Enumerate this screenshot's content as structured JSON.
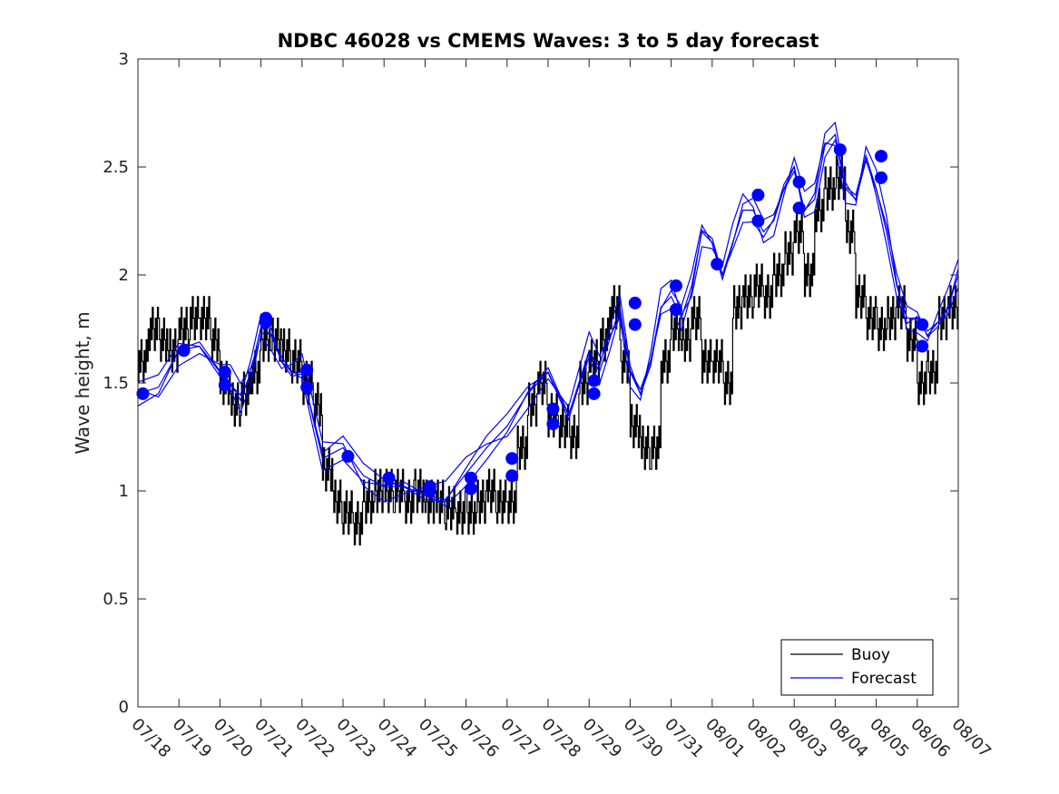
{
  "chart_data": {
    "type": "line",
    "title": "NDBC 46028 vs CMEMS Waves: 3 to 5 day forecast",
    "xlabel": "",
    "ylabel": "Wave height, m",
    "xlim": [
      0,
      20
    ],
    "ylim": [
      0,
      3
    ],
    "x_tick_labels": [
      "07/18",
      "07/19",
      "07/20",
      "07/21",
      "07/22",
      "07/23",
      "07/24",
      "07/25",
      "07/26",
      "07/27",
      "07/28",
      "07/29",
      "07/30",
      "07/31",
      "08/01",
      "08/02",
      "08/03",
      "08/04",
      "08/05",
      "08/06",
      "08/07"
    ],
    "y_ticks": [
      0,
      0.5,
      1,
      1.5,
      2,
      2.5,
      3
    ],
    "grid": false,
    "legend": {
      "position": "bottom-right",
      "entries": [
        "Buoy",
        "Forecast"
      ]
    },
    "colors": {
      "buoy": "#000000",
      "forecast": "#0000ff"
    },
    "series": [
      {
        "name": "Buoy",
        "x": [
          0,
          0.25,
          0.5,
          0.75,
          1,
          1.25,
          1.5,
          1.75,
          2,
          2.25,
          2.5,
          2.75,
          3,
          3.25,
          3.5,
          3.75,
          4,
          4.25,
          4.5,
          4.75,
          5,
          5.25,
          5.5,
          5.75,
          6,
          6.25,
          6.5,
          6.75,
          7,
          7.25,
          7.5,
          7.75,
          8,
          8.25,
          8.5,
          8.75,
          9,
          9.25,
          9.5,
          9.75,
          10,
          10.25,
          10.5,
          10.75,
          11,
          11.25,
          11.5,
          11.75,
          12,
          12.25,
          12.5,
          12.75,
          13,
          13.25,
          13.5,
          13.75,
          14,
          14.25,
          14.5,
          14.75,
          15,
          15.25,
          15.5,
          15.75,
          16,
          16.25,
          16.5,
          16.75,
          17,
          17.25,
          17.5,
          17.75,
          18,
          18.25,
          18.5,
          18.75,
          19,
          19.25,
          19.5,
          19.75,
          20
        ],
        "y": [
          1.6,
          1.75,
          1.7,
          1.65,
          1.75,
          1.8,
          1.8,
          1.7,
          1.5,
          1.4,
          1.45,
          1.55,
          1.7,
          1.7,
          1.65,
          1.6,
          1.5,
          1.4,
          1.1,
          0.95,
          0.9,
          0.85,
          0.95,
          1.0,
          1.0,
          1.0,
          0.95,
          1.0,
          0.95,
          0.95,
          0.92,
          0.9,
          0.9,
          0.95,
          1.0,
          0.95,
          0.95,
          1.2,
          1.4,
          1.5,
          1.35,
          1.3,
          1.25,
          1.5,
          1.6,
          1.7,
          1.85,
          1.6,
          1.3,
          1.2,
          1.2,
          1.6,
          1.75,
          1.7,
          1.8,
          1.6,
          1.6,
          1.5,
          1.85,
          1.9,
          1.95,
          1.9,
          2.0,
          2.1,
          2.2,
          2.0,
          2.3,
          2.4,
          2.45,
          2.2,
          1.9,
          1.8,
          1.75,
          1.8,
          1.85,
          1.7,
          1.5,
          1.55,
          1.8,
          1.85,
          1.9
        ]
      },
      {
        "name": "Forecast",
        "x": [
          0,
          0.5,
          1,
          1.5,
          2,
          2.25,
          2.5,
          2.75,
          3,
          3.25,
          3.5,
          3.75,
          4,
          4.5,
          5,
          5.5,
          6,
          6.5,
          7,
          7.5,
          8,
          8.5,
          9,
          9.5,
          10,
          10.5,
          11,
          11.25,
          11.5,
          11.75,
          12,
          12.25,
          12.5,
          12.75,
          13,
          13.25,
          13.5,
          13.75,
          14,
          14.25,
          14.5,
          14.75,
          15,
          15.25,
          15.5,
          15.75,
          16,
          16.25,
          16.5,
          16.75,
          17,
          17.25,
          17.5,
          17.75,
          18,
          18.25,
          18.5,
          18.75,
          19,
          19.25,
          19.5,
          19.75,
          20
        ],
        "y": [
          1.45,
          1.48,
          1.65,
          1.67,
          1.55,
          1.5,
          1.42,
          1.55,
          1.76,
          1.72,
          1.6,
          1.55,
          1.55,
          1.15,
          1.2,
          1.07,
          1.02,
          1.02,
          0.98,
          0.96,
          1.08,
          1.2,
          1.3,
          1.45,
          1.55,
          1.35,
          1.65,
          1.55,
          1.7,
          1.85,
          1.55,
          1.45,
          1.6,
          1.85,
          1.9,
          1.8,
          1.95,
          2.2,
          2.15,
          2.0,
          2.15,
          2.3,
          2.3,
          2.2,
          2.25,
          2.4,
          2.5,
          2.3,
          2.35,
          2.6,
          2.65,
          2.4,
          2.35,
          2.55,
          2.4,
          2.2,
          1.95,
          1.8,
          1.8,
          1.72,
          1.78,
          1.85,
          2.0
        ]
      }
    ],
    "forecast_markers": {
      "x": [
        0.12,
        1.12,
        2.12,
        2.12,
        3.12,
        3.12,
        4.12,
        4.12,
        5.12,
        6.12,
        7.12,
        7.12,
        8.12,
        8.12,
        9.12,
        9.12,
        10.12,
        10.12,
        11.12,
        11.12,
        12.12,
        12.12,
        13.12,
        13.12,
        14.12,
        15.12,
        15.12,
        16.12,
        16.12,
        17.12,
        18.12,
        18.12,
        19.12,
        19.12
      ],
      "y": [
        1.45,
        1.65,
        1.55,
        1.49,
        1.8,
        1.78,
        1.56,
        1.48,
        1.16,
        1.06,
        1.02,
        1.0,
        1.06,
        1.01,
        1.15,
        1.07,
        1.38,
        1.31,
        1.51,
        1.45,
        1.87,
        1.77,
        1.95,
        1.84,
        2.05,
        2.37,
        2.25,
        2.43,
        2.31,
        2.58,
        2.55,
        2.45,
        1.77,
        1.67
      ]
    }
  }
}
